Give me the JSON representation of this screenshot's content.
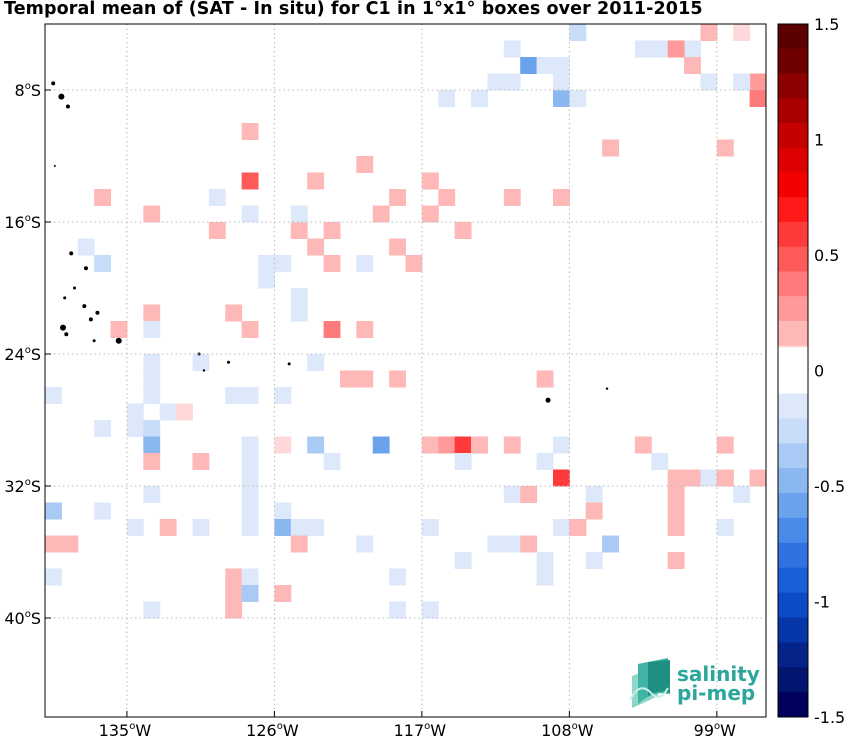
{
  "title": "Temporal mean of (SAT - In situ) for C1 in 1°x1° boxes over 2011-2015",
  "colors": {
    "neg": [
      "#dde9fb",
      "#c6dcf8",
      "#a9caf4",
      "#8ab7f0",
      "#6aa2ec",
      "#4a8ae8",
      "#2f72e0",
      "#1a5ed8",
      "#0b4bc8",
      "#0636a8",
      "#04248a",
      "#021670",
      "#00005c"
    ],
    "pos": [
      "#ffd9d9",
      "#ffb8b8",
      "#ff9a9a",
      "#ff7a7a",
      "#ff5a5a",
      "#ff3a3a",
      "#ff1a1a",
      "#f50000",
      "#dd0000",
      "#c40000",
      "#a80000",
      "#8c0000",
      "#700000",
      "#5a0000"
    ],
    "land": "#000000",
    "grid": "#b8b8b8"
  },
  "map": {
    "lon_range": [
      140,
      96
    ],
    "lat_range": [
      -46,
      -4
    ],
    "x_ticks": [
      {
        "lon": 135,
        "label": "135",
        "suffix": "W"
      },
      {
        "lon": 126,
        "label": "126",
        "suffix": "W"
      },
      {
        "lon": 117,
        "label": "117",
        "suffix": "W"
      },
      {
        "lon": 108,
        "label": "108",
        "suffix": "W"
      },
      {
        "lon": 99,
        "label": "99",
        "suffix": "W"
      }
    ],
    "y_ticks": [
      {
        "lat": -8,
        "label": "8",
        "suffix": "S"
      },
      {
        "lat": -16,
        "label": "16",
        "suffix": "S"
      },
      {
        "lat": -24,
        "label": "24",
        "suffix": "S"
      },
      {
        "lat": -32,
        "label": "32",
        "suffix": "S"
      },
      {
        "lat": -40,
        "label": "40",
        "suffix": "S"
      }
    ]
  },
  "colorbar": {
    "ticks": [
      {
        "value": 1.5,
        "label": "1.5"
      },
      {
        "value": 1,
        "label": "1"
      },
      {
        "value": 0.5,
        "label": "0.5"
      },
      {
        "value": 0,
        "label": "0"
      },
      {
        "value": -0.5,
        "label": "-0.5"
      },
      {
        "value": -1,
        "label": "-1"
      },
      {
        "value": -1.5,
        "label": "-1.5"
      }
    ]
  },
  "logo": {
    "line1": "salinity",
    "line2": "pi-mep"
  }
}
